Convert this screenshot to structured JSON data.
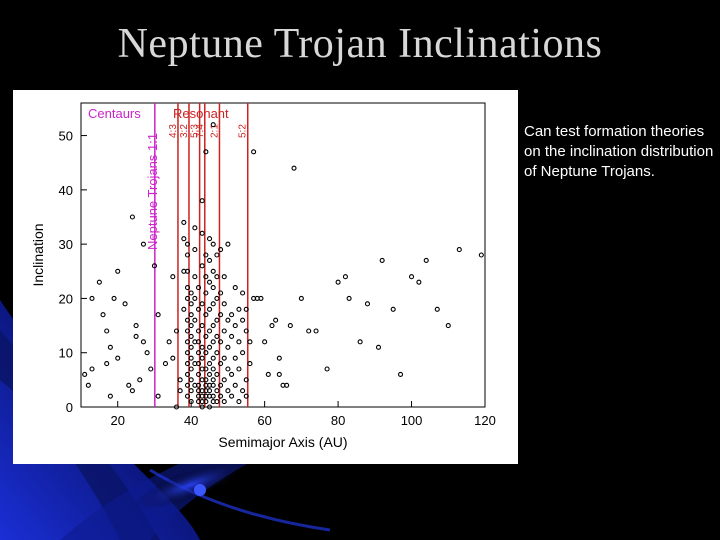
{
  "slide": {
    "title": "Neptune Trojan Inclinations",
    "note": "Can test formation theories on the inclination distribution of Neptune Trojans."
  },
  "colors": {
    "background": "#000000",
    "accent_blue": "#1a2fd6",
    "plot_bg": "#ffffff",
    "centaurs": "#cc22cc",
    "resonant": "#cc2222",
    "points": "#000000"
  },
  "chart_data": {
    "type": "scatter",
    "xlabel": "Semimajor Axis (AU)",
    "ylabel": "Inclination",
    "xlim": [
      10,
      120
    ],
    "ylim": [
      0,
      56
    ],
    "xticks": [
      20,
      40,
      60,
      80,
      100,
      120
    ],
    "yticks": [
      0,
      10,
      20,
      30,
      40,
      50
    ],
    "grid": false,
    "annotations": {
      "centaurs": "Centaurs",
      "resonant": "Resonant",
      "neptune_trojans": "Neptune Trojans 1:1"
    },
    "resonances": [
      {
        "label": "1:1",
        "a": 30.1,
        "color": "#cc22cc"
      },
      {
        "label": "4:3",
        "a": 36.4,
        "color": "#cc2222"
      },
      {
        "label": "3:2",
        "a": 39.4,
        "color": "#cc2222"
      },
      {
        "label": "5:3",
        "a": 42.3,
        "color": "#cc2222"
      },
      {
        "label": "7:4",
        "a": 43.7,
        "color": "#cc2222"
      },
      {
        "label": "2:1",
        "a": 47.7,
        "color": "#cc2222"
      },
      {
        "label": "5:2",
        "a": 55.4,
        "color": "#cc2222"
      }
    ],
    "points": [
      [
        11,
        6
      ],
      [
        12,
        4
      ],
      [
        13,
        20
      ],
      [
        13,
        7
      ],
      [
        15,
        23
      ],
      [
        16,
        17
      ],
      [
        17,
        14
      ],
      [
        17,
        8
      ],
      [
        18,
        11
      ],
      [
        18,
        2
      ],
      [
        19,
        20
      ],
      [
        20,
        9
      ],
      [
        20,
        25
      ],
      [
        22,
        19
      ],
      [
        23,
        4
      ],
      [
        24,
        3
      ],
      [
        24,
        35
      ],
      [
        25,
        13
      ],
      [
        25,
        15
      ],
      [
        26,
        5
      ],
      [
        27,
        12
      ],
      [
        27,
        30
      ],
      [
        28,
        10
      ],
      [
        29,
        7
      ],
      [
        30,
        26
      ],
      [
        31,
        2
      ],
      [
        31,
        17
      ],
      [
        33,
        8
      ],
      [
        34,
        12
      ],
      [
        35,
        24
      ],
      [
        35,
        9
      ],
      [
        36,
        14
      ],
      [
        36,
        0
      ],
      [
        37,
        3
      ],
      [
        37,
        5
      ],
      [
        38,
        25
      ],
      [
        38,
        18
      ],
      [
        38,
        31
      ],
      [
        38,
        34
      ],
      [
        39,
        2
      ],
      [
        39,
        4
      ],
      [
        39,
        6
      ],
      [
        39,
        8
      ],
      [
        39,
        10
      ],
      [
        39,
        12
      ],
      [
        39,
        14
      ],
      [
        39,
        16
      ],
      [
        39,
        20
      ],
      [
        39,
        22
      ],
      [
        39,
        25
      ],
      [
        39,
        28
      ],
      [
        39,
        30
      ],
      [
        40,
        1
      ],
      [
        40,
        3
      ],
      [
        40,
        5
      ],
      [
        40,
        7
      ],
      [
        40,
        9
      ],
      [
        40,
        11
      ],
      [
        40,
        13
      ],
      [
        40,
        15
      ],
      [
        40,
        17
      ],
      [
        40,
        19
      ],
      [
        40,
        21
      ],
      [
        41,
        4
      ],
      [
        41,
        8
      ],
      [
        41,
        12
      ],
      [
        41,
        16
      ],
      [
        41,
        20
      ],
      [
        41,
        24
      ],
      [
        41,
        29
      ],
      [
        41,
        33
      ],
      [
        42,
        1
      ],
      [
        42,
        2
      ],
      [
        42,
        3
      ],
      [
        42,
        4
      ],
      [
        42,
        6
      ],
      [
        42,
        8
      ],
      [
        42,
        10
      ],
      [
        42,
        12
      ],
      [
        42,
        14
      ],
      [
        42,
        18
      ],
      [
        42,
        22
      ],
      [
        43,
        0
      ],
      [
        43,
        1
      ],
      [
        43,
        2
      ],
      [
        43,
        3
      ],
      [
        43,
        5
      ],
      [
        43,
        7
      ],
      [
        43,
        9
      ],
      [
        43,
        11
      ],
      [
        43,
        15
      ],
      [
        43,
        19
      ],
      [
        43,
        26
      ],
      [
        43,
        32
      ],
      [
        43,
        38
      ],
      [
        44,
        1
      ],
      [
        44,
        2
      ],
      [
        44,
        3
      ],
      [
        44,
        4
      ],
      [
        44,
        5
      ],
      [
        44,
        7
      ],
      [
        44,
        10
      ],
      [
        44,
        13
      ],
      [
        44,
        17
      ],
      [
        44,
        21
      ],
      [
        44,
        24
      ],
      [
        44,
        28
      ],
      [
        44,
        47
      ],
      [
        45,
        0
      ],
      [
        45,
        2
      ],
      [
        45,
        3
      ],
      [
        45,
        4
      ],
      [
        45,
        6
      ],
      [
        45,
        8
      ],
      [
        45,
        11
      ],
      [
        45,
        14
      ],
      [
        45,
        18
      ],
      [
        45,
        23
      ],
      [
        45,
        27
      ],
      [
        45,
        31
      ],
      [
        46,
        1
      ],
      [
        46,
        2
      ],
      [
        46,
        4
      ],
      [
        46,
        5
      ],
      [
        46,
        7
      ],
      [
        46,
        9
      ],
      [
        46,
        12
      ],
      [
        46,
        15
      ],
      [
        46,
        19
      ],
      [
        46,
        22
      ],
      [
        46,
        25
      ],
      [
        46,
        30
      ],
      [
        46,
        52
      ],
      [
        47,
        1
      ],
      [
        47,
        3
      ],
      [
        47,
        6
      ],
      [
        47,
        10
      ],
      [
        47,
        13
      ],
      [
        47,
        16
      ],
      [
        47,
        20
      ],
      [
        47,
        24
      ],
      [
        47,
        28
      ],
      [
        48,
        2
      ],
      [
        48,
        4
      ],
      [
        48,
        8
      ],
      [
        48,
        12
      ],
      [
        48,
        17
      ],
      [
        48,
        21
      ],
      [
        48,
        29
      ],
      [
        49,
        1
      ],
      [
        49,
        5
      ],
      [
        49,
        9
      ],
      [
        49,
        14
      ],
      [
        49,
        19
      ],
      [
        49,
        24
      ],
      [
        50,
        3
      ],
      [
        50,
        7
      ],
      [
        50,
        11
      ],
      [
        50,
        16
      ],
      [
        50,
        30
      ],
      [
        51,
        2
      ],
      [
        51,
        6
      ],
      [
        51,
        13
      ],
      [
        51,
        17
      ],
      [
        52,
        4
      ],
      [
        52,
        9
      ],
      [
        52,
        15
      ],
      [
        52,
        22
      ],
      [
        53,
        1
      ],
      [
        53,
        7
      ],
      [
        53,
        12
      ],
      [
        53,
        18
      ],
      [
        54,
        3
      ],
      [
        54,
        10
      ],
      [
        54,
        16
      ],
      [
        54,
        21
      ],
      [
        55,
        2
      ],
      [
        55,
        5
      ],
      [
        55,
        14
      ],
      [
        55,
        18
      ],
      [
        56,
        8
      ],
      [
        56,
        12
      ],
      [
        57,
        20
      ],
      [
        57,
        47
      ],
      [
        58,
        20
      ],
      [
        59,
        20
      ],
      [
        60,
        12
      ],
      [
        61,
        6
      ],
      [
        62,
        15
      ],
      [
        63,
        16
      ],
      [
        64,
        6
      ],
      [
        64,
        9
      ],
      [
        65,
        4
      ],
      [
        66,
        4
      ],
      [
        67,
        15
      ],
      [
        68,
        44
      ],
      [
        70,
        20
      ],
      [
        72,
        14
      ],
      [
        74,
        14
      ],
      [
        77,
        7
      ],
      [
        80,
        23
      ],
      [
        82,
        24
      ],
      [
        83,
        20
      ],
      [
        86,
        12
      ],
      [
        88,
        19
      ],
      [
        91,
        11
      ],
      [
        92,
        27
      ],
      [
        95,
        18
      ],
      [
        97,
        6
      ],
      [
        100,
        24
      ],
      [
        102,
        23
      ],
      [
        104,
        27
      ],
      [
        107,
        18
      ],
      [
        110,
        15
      ],
      [
        113,
        29
      ],
      [
        119,
        28
      ]
    ]
  }
}
